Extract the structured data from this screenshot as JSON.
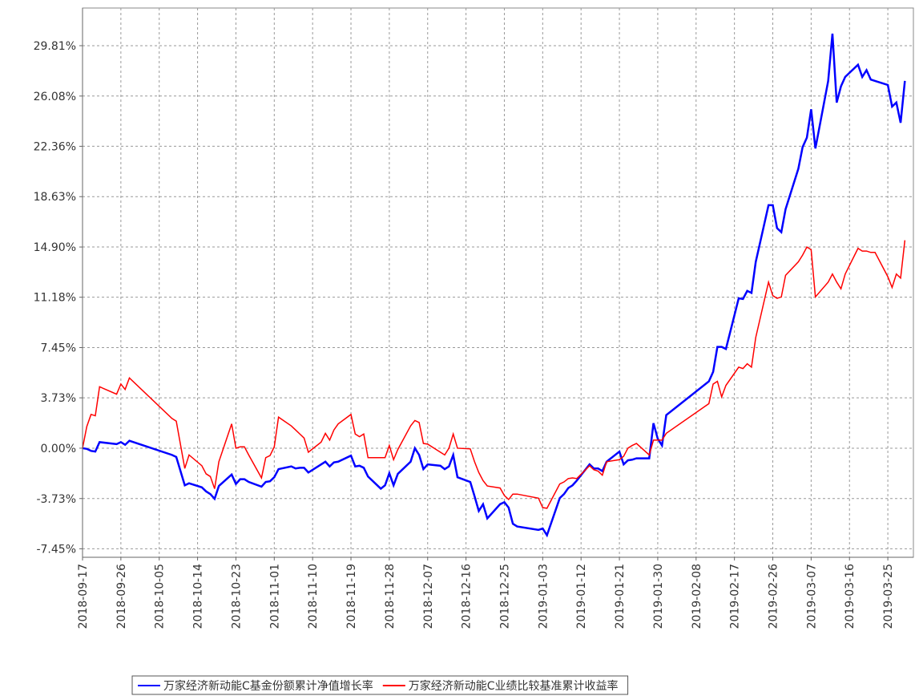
{
  "chart_data": {
    "type": "line",
    "x": [
      "2018-09-17",
      "2018-09-18",
      "2018-09-19",
      "2018-09-20",
      "2018-09-21",
      "2018-09-25",
      "2018-09-26",
      "2018-09-27",
      "2018-09-28",
      "2018-10-08",
      "2018-10-09",
      "2018-10-11",
      "2018-10-12",
      "2018-10-15",
      "2018-10-16",
      "2018-10-17",
      "2018-10-18",
      "2018-10-19",
      "2018-10-22",
      "2018-10-23",
      "2018-10-24",
      "2018-10-25",
      "2018-10-26",
      "2018-10-29",
      "2018-10-30",
      "2018-10-31",
      "2018-11-01",
      "2018-11-02",
      "2018-11-05",
      "2018-11-06",
      "2018-11-07",
      "2018-11-08",
      "2018-11-09",
      "2018-11-12",
      "2018-11-13",
      "2018-11-14",
      "2018-11-15",
      "2018-11-16",
      "2018-11-19",
      "2018-11-20",
      "2018-11-21",
      "2018-11-22",
      "2018-11-23",
      "2018-11-26",
      "2018-11-27",
      "2018-11-28",
      "2018-11-29",
      "2018-11-30",
      "2018-12-03",
      "2018-12-04",
      "2018-12-05",
      "2018-12-06",
      "2018-12-07",
      "2018-12-10",
      "2018-12-11",
      "2018-12-12",
      "2018-12-13",
      "2018-12-14",
      "2018-12-17",
      "2018-12-18",
      "2018-12-19",
      "2018-12-20",
      "2018-12-21",
      "2018-12-24",
      "2018-12-25",
      "2018-12-26",
      "2018-12-27",
      "2018-12-28",
      "2019-01-02",
      "2019-01-03",
      "2019-01-04",
      "2019-01-07",
      "2019-01-08",
      "2019-01-09",
      "2019-01-10",
      "2019-01-11",
      "2019-01-14",
      "2019-01-15",
      "2019-01-16",
      "2019-01-17",
      "2019-01-18",
      "2019-01-21",
      "2019-01-22",
      "2019-01-23",
      "2019-01-24",
      "2019-01-25",
      "2019-01-28",
      "2019-01-29",
      "2019-01-30",
      "2019-01-31",
      "2019-02-01",
      "2019-02-11",
      "2019-02-12",
      "2019-02-13",
      "2019-02-14",
      "2019-02-15",
      "2019-02-18",
      "2019-02-19",
      "2019-02-20",
      "2019-02-21",
      "2019-02-22",
      "2019-02-25",
      "2019-02-26",
      "2019-02-27",
      "2019-02-28",
      "2019-03-01",
      "2019-03-04",
      "2019-03-05",
      "2019-03-06",
      "2019-03-07",
      "2019-03-08",
      "2019-03-11",
      "2019-03-12",
      "2019-03-13",
      "2019-03-14",
      "2019-03-15",
      "2019-03-18",
      "2019-03-19",
      "2019-03-20",
      "2019-03-21",
      "2019-03-22",
      "2019-03-25",
      "2019-03-26",
      "2019-03-27",
      "2019-03-28",
      "2019-03-29"
    ],
    "series": [
      {
        "name": "万家经济新动能C基金份额累计净值增长率",
        "color": "#0000ff",
        "values": [
          0.0,
          -0.05,
          -0.2,
          -0.25,
          0.45,
          0.3,
          0.45,
          0.25,
          0.55,
          -0.5,
          -0.65,
          -2.75,
          -2.6,
          -2.9,
          -3.2,
          -3.4,
          -3.75,
          -2.8,
          -1.95,
          -2.65,
          -2.3,
          -2.3,
          -2.5,
          -2.85,
          -2.5,
          -2.45,
          -2.15,
          -1.55,
          -1.35,
          -1.5,
          -1.45,
          -1.45,
          -1.8,
          -1.2,
          -1.0,
          -1.35,
          -1.05,
          -1.0,
          -0.55,
          -1.35,
          -1.3,
          -1.45,
          -2.1,
          -3.0,
          -2.75,
          -1.85,
          -2.75,
          -1.9,
          -1.0,
          0.0,
          -0.5,
          -1.55,
          -1.2,
          -1.3,
          -1.55,
          -1.35,
          -0.5,
          -2.15,
          -2.5,
          -3.55,
          -4.65,
          -4.15,
          -5.2,
          -4.15,
          -4.0,
          -4.4,
          -5.6,
          -5.8,
          -6.05,
          -5.95,
          -6.45,
          -3.7,
          -3.4,
          -2.95,
          -2.75,
          -2.4,
          -1.2,
          -1.5,
          -1.5,
          -1.7,
          -1.0,
          -0.25,
          -1.2,
          -0.9,
          -0.85,
          -0.75,
          -0.75,
          1.85,
          0.7,
          0.2,
          2.45,
          4.95,
          5.65,
          7.5,
          7.5,
          7.35,
          11.1,
          11.05,
          11.65,
          11.5,
          13.8,
          18.0,
          18.0,
          16.3,
          16.0,
          17.7,
          20.7,
          22.3,
          23.0,
          25.1,
          22.2,
          27.2,
          30.7,
          25.6,
          26.8,
          27.5,
          28.4,
          27.5,
          28.0,
          27.3,
          27.2,
          26.9,
          25.3,
          25.6,
          24.1,
          27.2
        ]
      },
      {
        "name": "万家经济新动能C业绩比较基准累计收益率",
        "color": "#ff0000",
        "values": [
          0.0,
          1.6,
          2.5,
          2.4,
          4.55,
          4.0,
          4.75,
          4.35,
          5.2,
          2.2,
          2.0,
          -1.5,
          -0.5,
          -1.3,
          -1.9,
          -2.1,
          -3.0,
          -1.0,
          1.8,
          0.0,
          0.1,
          0.1,
          -0.5,
          -2.2,
          -0.7,
          -0.55,
          0.1,
          2.3,
          1.65,
          1.35,
          1.05,
          0.75,
          -0.3,
          0.45,
          1.1,
          0.6,
          1.35,
          1.8,
          2.5,
          1.05,
          0.85,
          1.05,
          -0.7,
          -0.7,
          -0.7,
          0.2,
          -0.85,
          -0.1,
          1.65,
          2.05,
          1.9,
          0.35,
          0.3,
          -0.3,
          -0.5,
          0.0,
          1.05,
          0.0,
          -0.05,
          -1.0,
          -1.8,
          -2.4,
          -2.8,
          -2.95,
          -3.5,
          -3.8,
          -3.4,
          -3.4,
          -3.7,
          -4.4,
          -4.45,
          -2.65,
          -2.5,
          -2.25,
          -2.2,
          -2.25,
          -1.3,
          -1.6,
          -1.7,
          -2.0,
          -1.0,
          -0.85,
          -0.6,
          0.0,
          0.2,
          0.35,
          -0.5,
          0.6,
          0.6,
          0.6,
          1.1,
          3.3,
          4.75,
          4.95,
          3.8,
          4.65,
          6.0,
          5.9,
          6.25,
          6.0,
          8.2,
          12.3,
          11.3,
          11.1,
          11.2,
          12.8,
          13.8,
          14.3,
          14.9,
          14.7,
          11.2,
          12.3,
          12.9,
          12.3,
          11.8,
          12.9,
          14.8,
          14.6,
          14.6,
          14.5,
          14.5,
          12.7,
          11.9,
          12.9,
          12.6,
          15.4
        ]
      }
    ],
    "xlim": [
      "2018-09-17",
      "2019-03-31"
    ],
    "xticks": [
      "2018-09-17",
      "2018-09-26",
      "2018-10-05",
      "2018-10-14",
      "2018-10-23",
      "2018-11-01",
      "2018-11-10",
      "2018-11-19",
      "2018-11-28",
      "2018-12-07",
      "2018-12-16",
      "2018-12-25",
      "2019-01-03",
      "2019-01-12",
      "2019-01-21",
      "2019-01-30",
      "2019-02-08",
      "2019-02-17",
      "2019-02-26",
      "2019-03-07",
      "2019-03-16",
      "2019-03-25"
    ],
    "ylim": [
      -8.08,
      32.6
    ],
    "yticks": [
      {
        "value": -7.45,
        "label": "-7.45%"
      },
      {
        "value": -3.73,
        "label": "-3.73%"
      },
      {
        "value": 0,
        "label": "0.00%"
      },
      {
        "value": 3.73,
        "label": "3.73%"
      },
      {
        "value": 7.45,
        "label": "7.45%"
      },
      {
        "value": 11.18,
        "label": "11.18%"
      },
      {
        "value": 14.9,
        "label": "14.90%"
      },
      {
        "value": 18.63,
        "label": "18.63%"
      },
      {
        "value": 22.36,
        "label": "22.36%"
      },
      {
        "value": 26.08,
        "label": "26.08%"
      },
      {
        "value": 29.81,
        "label": "29.81%"
      }
    ],
    "grid": true,
    "legend": "bottom"
  }
}
